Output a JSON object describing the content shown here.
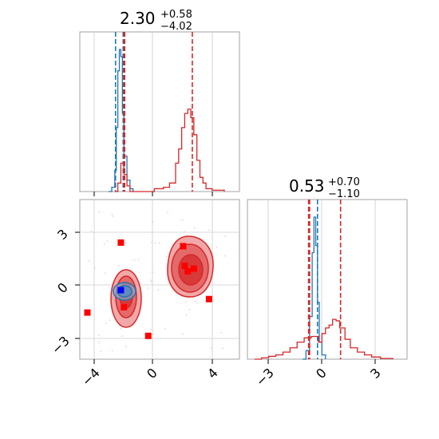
{
  "chart_data": {
    "type": "corner",
    "parameters": [
      {
        "title": {
          "value": "2.30",
          "plus": "+0.58",
          "minus": "−4.02"
        },
        "xticks": [
          "−4",
          "0",
          "4"
        ],
        "xlim": [
          -4.5,
          6
        ],
        "series": [
          {
            "name": "blue",
            "color": "#1f77b4",
            "hist": [
              [
                -2.6,
                0
              ],
              [
                -2.4,
                0.03
              ],
              [
                -2.2,
                0.15
              ],
              [
                -2.1,
                0.45
              ],
              [
                -2.0,
                0.85
              ],
              [
                -1.9,
                1.0
              ],
              [
                -1.8,
                0.95
              ],
              [
                -1.7,
                0.55
              ],
              [
                -1.6,
                0.25
              ],
              [
                -1.4,
                0.08
              ],
              [
                -1.2,
                0.02
              ],
              [
                -1.0,
                0
              ]
            ],
            "lines": [
              -2.15,
              -1.65,
              -1.55
            ]
          },
          {
            "name": "red",
            "color": "#d62728",
            "hist": [
              [
                -2.2,
                0
              ],
              [
                -2.0,
                0.06
              ],
              [
                -1.8,
                0.2
              ],
              [
                -1.7,
                0.2
              ],
              [
                -1.6,
                0.12
              ],
              [
                -1.4,
                0.04
              ],
              [
                -1.2,
                0
              ],
              [
                0,
                0.0
              ],
              [
                0.4,
                0.02
              ],
              [
                1.0,
                0.03
              ],
              [
                1.4,
                0.06
              ],
              [
                1.8,
                0.2
              ],
              [
                2.0,
                0.3
              ],
              [
                2.2,
                0.45
              ],
              [
                2.4,
                0.55
              ],
              [
                2.6,
                0.58
              ],
              [
                2.8,
                0.52
              ],
              [
                3.0,
                0.4
              ],
              [
                3.2,
                0.22
              ],
              [
                3.4,
                0.1
              ],
              [
                3.6,
                0.06
              ],
              [
                3.8,
                0.02
              ],
              [
                4.2,
                0.01
              ],
              [
                5.0,
                0
              ]
            ],
            "lines": [
              -1.6,
              -1.55,
              2.9
            ]
          }
        ]
      },
      {
        "title": {
          "value": "0.53",
          "plus": "+0.70",
          "minus": "−1.10"
        },
        "xticks": [
          "−3",
          "0",
          "3"
        ],
        "xlim": [
          -4,
          5
        ],
        "series": [
          {
            "name": "blue",
            "color": "#1f77b4",
            "hist": [
              [
                -0.9,
                0
              ],
              [
                -0.7,
                0.06
              ],
              [
                -0.5,
                0.3
              ],
              [
                -0.35,
                0.75
              ],
              [
                -0.25,
                1.0
              ],
              [
                -0.15,
                0.8
              ],
              [
                -0.05,
                0.4
              ],
              [
                0.05,
                0.12
              ],
              [
                0.2,
                0.03
              ],
              [
                0.4,
                0
              ]
            ],
            "lines": [
              -0.5,
              -0.5,
              -0.05
            ]
          },
          {
            "name": "red",
            "color": "#d62728",
            "hist": [
              [
                -3.6,
                0
              ],
              [
                -3.2,
                0.01
              ],
              [
                -2.8,
                0.02
              ],
              [
                -2.4,
                0.03
              ],
              [
                -2.0,
                0.05
              ],
              [
                -1.6,
                0.08
              ],
              [
                -1.2,
                0.12
              ],
              [
                -0.8,
                0.15
              ],
              [
                -0.4,
                0.16
              ],
              [
                0,
                0.12
              ],
              [
                0.2,
                0.18
              ],
              [
                0.4,
                0.22
              ],
              [
                0.6,
                0.24
              ],
              [
                0.8,
                0.28
              ],
              [
                1.0,
                0.27
              ],
              [
                1.2,
                0.22
              ],
              [
                1.5,
                0.14
              ],
              [
                1.8,
                0.08
              ],
              [
                2.2,
                0.05
              ],
              [
                2.6,
                0.03
              ],
              [
                3.0,
                0.015
              ],
              [
                3.5,
                0.005
              ],
              [
                4.2,
                0
              ]
            ],
            "lines": [
              -0.55,
              -0.5,
              1.25
            ]
          }
        ]
      }
    ],
    "joint": {
      "xticks": [
        "−4",
        "0",
        "4"
      ],
      "yticks": [
        "3",
        "0",
        "−3"
      ],
      "xlim": [
        -4.5,
        6
      ],
      "ylim": [
        -4.2,
        4.7
      ],
      "blue_marker": [
        -1.8,
        -0.35
      ],
      "red_markers": [
        [
          -4,
          -1.6
        ],
        [
          -1.8,
          2.3
        ],
        [
          -1.6,
          -1.3
        ],
        [
          0,
          -2.9
        ],
        [
          2.3,
          2.1
        ],
        [
          2.4,
          1.0
        ],
        [
          2.6,
          0.7
        ],
        [
          3.0,
          0.85
        ],
        [
          4.0,
          -0.85
        ]
      ],
      "grid": true
    }
  }
}
